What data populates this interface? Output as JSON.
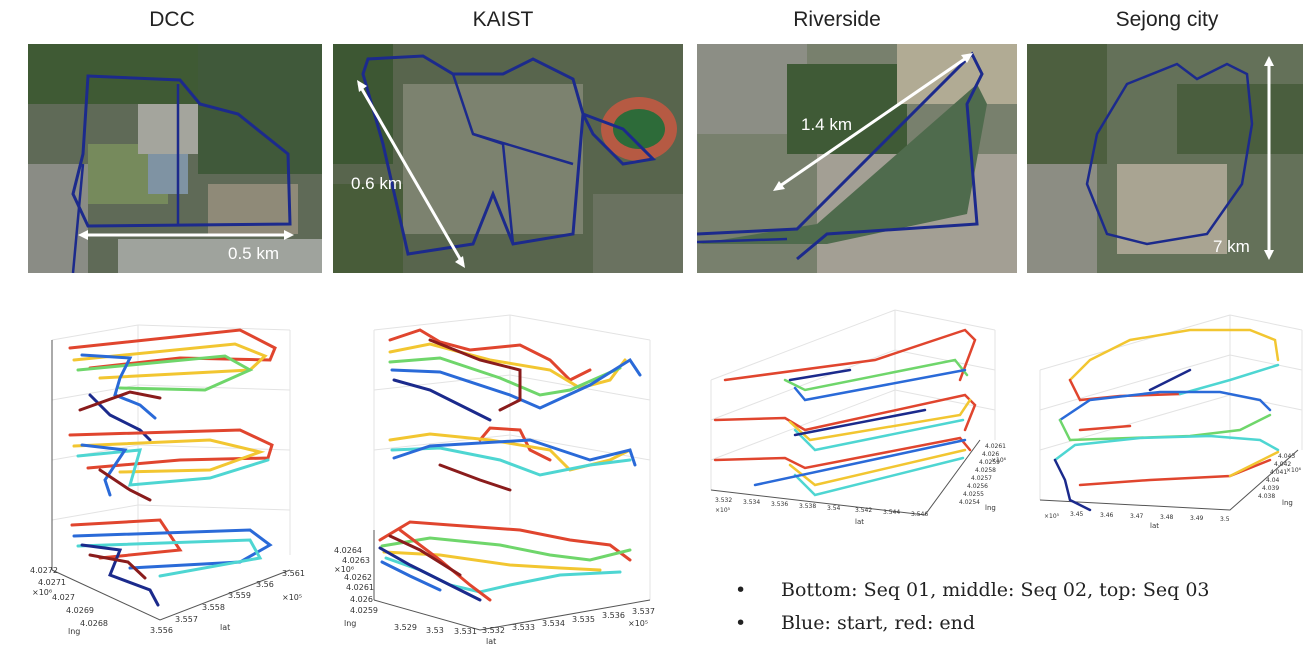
{
  "titles": {
    "dcc": "DCC",
    "kaist": "KAIST",
    "riverside": "Riverside",
    "sejong": "Sejong city"
  },
  "distances": {
    "dcc": "0.5 km",
    "kaist": "0.6 km",
    "riverside": "1.4 km",
    "sejong": "7 km"
  },
  "plots": {
    "dcc": {
      "x_ticks": [
        "3.556",
        "3.557",
        "3.558",
        "3.559",
        "3.56",
        "3.561"
      ],
      "y_ticks": [
        "4.0272",
        "4.0271",
        "4.027",
        "4.0269",
        "4.0268"
      ],
      "x_label": "lat",
      "y_label": "lng",
      "x_exp": "×10⁵",
      "y_exp": "×10⁶"
    },
    "kaist": {
      "x_ticks": [
        "3.529",
        "3.53",
        "3.531",
        "3.532",
        "3.533",
        "3.534",
        "3.535",
        "3.536",
        "3.537"
      ],
      "y_ticks": [
        "4.0264",
        "4.0263",
        "4.0262",
        "4.0261",
        "4.026",
        "4.0259"
      ],
      "x_label": "lat",
      "y_label": "lng",
      "x_exp": "×10⁵",
      "y_exp": "×10⁶"
    },
    "riverside": {
      "x_ticks": [
        "3.532",
        "3.534",
        "3.536",
        "3.538",
        "3.54",
        "3.542",
        "3.544",
        "3.546"
      ],
      "y_ticks": [
        "4.0261",
        "4.026",
        "4.0259",
        "4.0258",
        "4.0257",
        "4.0256",
        "4.0255",
        "4.0254"
      ],
      "x_label": "lat",
      "y_label": "lng",
      "x_exp": "×10⁵",
      "y_exp": "×10⁶"
    },
    "sejong": {
      "x_ticks": [
        "3.45",
        "3.46",
        "3.47",
        "3.48",
        "3.49",
        "3.5"
      ],
      "y_ticks": [
        "4.043",
        "4.042",
        "4.041",
        "4.04",
        "4.039",
        "4.038"
      ],
      "x_label": "lat",
      "y_label": "lng",
      "x_exp": "×10⁵",
      "y_exp": "×10⁶"
    }
  },
  "notes": [
    "Bottom: Seq 01, middle: Seq 02, top: Seq 03",
    "Blue: start, red: end"
  ]
}
